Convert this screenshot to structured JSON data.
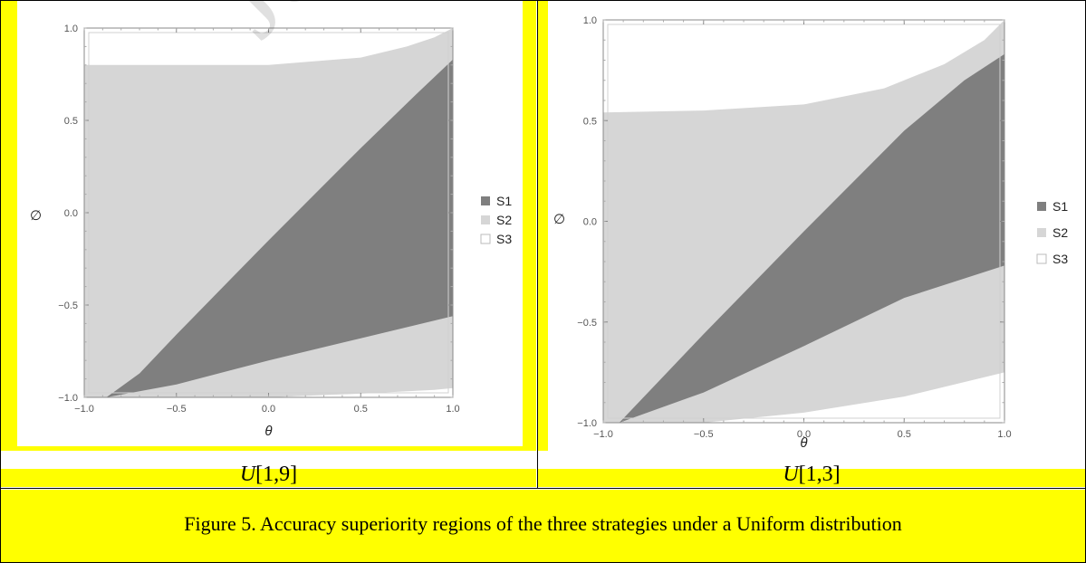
{
  "chart_data": [
    {
      "type": "area",
      "subtitle": "U[1,9]",
      "xlabel": "θ",
      "ylabel": "∅",
      "xlim": [
        -1.0,
        1.0
      ],
      "ylim": [
        -1.0,
        1.0
      ],
      "xticks": [
        "−1.0",
        "−0.5",
        "0.0",
        "0.5",
        "1.0"
      ],
      "yticks": [
        "1.0",
        "0.5",
        "0.0",
        "−0.5",
        "−1.0"
      ],
      "legend": [
        "S1",
        "S2",
        "S3"
      ],
      "legend_position": "right",
      "regions": {
        "S3_top": [
          [
            -1.0,
            0.8
          ],
          [
            -0.5,
            0.8
          ],
          [
            0.0,
            0.8
          ],
          [
            0.5,
            0.84
          ],
          [
            0.75,
            0.9
          ],
          [
            0.9,
            0.95
          ],
          [
            1.0,
            1.0
          ]
        ],
        "S1_upper": [
          [
            -0.88,
            -1.0
          ],
          [
            -0.7,
            -0.87
          ],
          [
            -0.5,
            -0.66
          ],
          [
            0.0,
            -0.15
          ],
          [
            0.5,
            0.35
          ],
          [
            0.8,
            0.64
          ],
          [
            1.0,
            0.83
          ]
        ],
        "S1_lower": [
          [
            -0.88,
            -1.0
          ],
          [
            -0.5,
            -0.93
          ],
          [
            0.0,
            -0.8
          ],
          [
            0.5,
            -0.68
          ],
          [
            1.0,
            -0.56
          ]
        ],
        "S3_bottom": [
          [
            0.0,
            -1.0
          ],
          [
            0.5,
            -0.98
          ],
          [
            0.9,
            -0.96
          ],
          [
            1.0,
            -0.95
          ]
        ]
      },
      "colors": {
        "S1": "#7f7f7f",
        "S2": "#d6d6d6",
        "S3": "#ffffff"
      }
    },
    {
      "type": "area",
      "subtitle": "U[1,3]",
      "xlabel": "θ",
      "ylabel": "∅",
      "xlim": [
        -1.0,
        1.0
      ],
      "ylim": [
        -1.0,
        1.0
      ],
      "xticks": [
        "−1.0",
        "−0.5",
        "0.0",
        "0.5",
        "1.0"
      ],
      "yticks": [
        "1.0",
        "0.5",
        "0.0",
        "−0.5",
        "−1.0"
      ],
      "legend": [
        "S1",
        "S2",
        "S3"
      ],
      "legend_position": "right",
      "regions": {
        "S3_top": [
          [
            -1.0,
            0.54
          ],
          [
            -0.5,
            0.55
          ],
          [
            0.0,
            0.58
          ],
          [
            0.4,
            0.66
          ],
          [
            0.7,
            0.78
          ],
          [
            0.9,
            0.9
          ],
          [
            1.0,
            1.0
          ]
        ],
        "S1_upper": [
          [
            -0.92,
            -1.0
          ],
          [
            -0.7,
            -0.77
          ],
          [
            -0.5,
            -0.56
          ],
          [
            0.0,
            -0.05
          ],
          [
            0.5,
            0.45
          ],
          [
            0.8,
            0.7
          ],
          [
            1.0,
            0.83
          ]
        ],
        "S1_lower": [
          [
            -0.92,
            -1.0
          ],
          [
            -0.5,
            -0.85
          ],
          [
            0.0,
            -0.62
          ],
          [
            0.5,
            -0.38
          ],
          [
            1.0,
            -0.22
          ]
        ],
        "S3_bottom": [
          [
            -0.5,
            -1.0
          ],
          [
            0.0,
            -0.95
          ],
          [
            0.5,
            -0.87
          ],
          [
            1.0,
            -0.75
          ]
        ]
      },
      "colors": {
        "S1": "#7f7f7f",
        "S2": "#d6d6d6",
        "S3": "#ffffff"
      }
    }
  ],
  "subcaptions": [
    {
      "pre": "U",
      "rest": "[1,9]"
    },
    {
      "pre": "U",
      "rest": "[1,3]"
    }
  ],
  "caption": "Figure 5. Accuracy superiority regions of the three strategies under a Uniform distribution",
  "watermark": "Journ"
}
